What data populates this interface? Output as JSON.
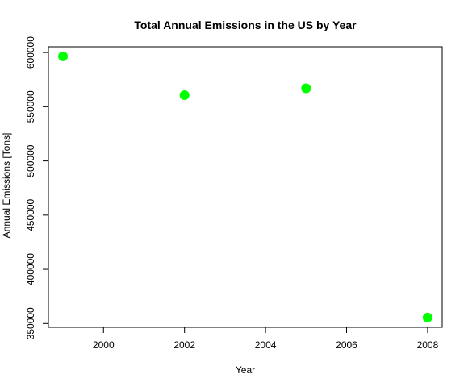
{
  "chart_data": {
    "type": "scatter",
    "title": "Total Annual Emissions in the US by Year",
    "xlabel": "Year",
    "ylabel": "Annual Emissions [Tons]",
    "x": [
      1999,
      2002,
      2005,
      2008
    ],
    "y": [
      596500,
      560700,
      567000,
      355500
    ],
    "xlim": [
      1998.64,
      2008.36
    ],
    "ylim": [
      346500,
      605300
    ],
    "xticks": [
      2000,
      2002,
      2004,
      2006,
      2008
    ],
    "xtick_labels": [
      "2000",
      "2002",
      "2004",
      "2006",
      "2008"
    ],
    "yticks": [
      350000,
      400000,
      450000,
      500000,
      550000,
      600000
    ],
    "ytick_labels": [
      "350000",
      "400000",
      "450000",
      "500000",
      "550000",
      "600000"
    ],
    "point_color": "#00ff00",
    "grid": false,
    "legend": false
  }
}
